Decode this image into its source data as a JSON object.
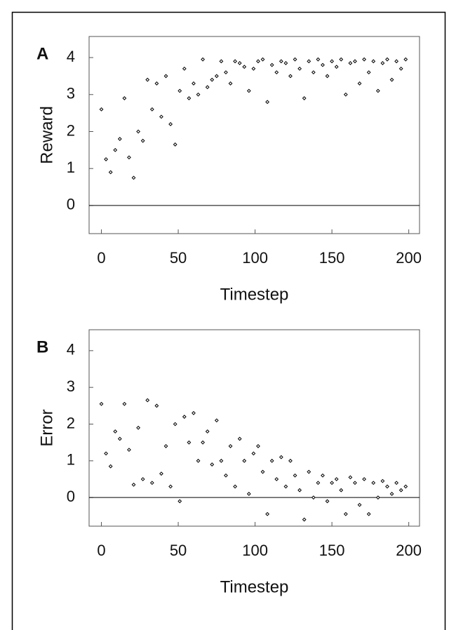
{
  "chart_data": [
    {
      "type": "scatter",
      "panel_label": "A",
      "xlabel": "Timestep",
      "ylabel": "Reward",
      "color": "#000000",
      "zero_line": true,
      "x": [
        0,
        3,
        6,
        9,
        12,
        15,
        18,
        21,
        24,
        27,
        30,
        33,
        36,
        39,
        42,
        45,
        48,
        51,
        54,
        57,
        60,
        63,
        66,
        69,
        72,
        75,
        78,
        81,
        84,
        87,
        90,
        93,
        96,
        99,
        102,
        105,
        108,
        111,
        114,
        117,
        120,
        123,
        126,
        129,
        132,
        135,
        138,
        141,
        144,
        147,
        150,
        153,
        156,
        159,
        162,
        165,
        168,
        171,
        174,
        177,
        180,
        183,
        186,
        189,
        192,
        195,
        198
      ],
      "values": [
        2.6,
        1.25,
        0.9,
        1.5,
        1.8,
        2.9,
        1.3,
        0.75,
        2.0,
        1.75,
        3.4,
        2.6,
        3.3,
        2.4,
        3.5,
        2.2,
        1.65,
        3.1,
        3.7,
        2.9,
        3.3,
        3.0,
        3.95,
        3.2,
        3.4,
        3.5,
        3.9,
        3.6,
        3.3,
        3.9,
        3.85,
        3.75,
        3.1,
        3.7,
        3.9,
        3.95,
        2.8,
        3.8,
        3.6,
        3.9,
        3.85,
        3.5,
        3.95,
        3.7,
        2.9,
        3.9,
        3.6,
        3.95,
        3.8,
        3.5,
        3.9,
        3.75,
        3.95,
        3.0,
        3.85,
        3.9,
        3.3,
        3.95,
        3.6,
        3.9,
        3.1,
        3.85,
        3.95,
        3.4,
        3.9,
        3.7,
        3.95
      ],
      "xlim": [
        -8,
        207
      ],
      "ylim": [
        -0.76,
        4.57
      ],
      "xticks": [
        0,
        50,
        100,
        150,
        200
      ],
      "yticks": [
        0,
        1,
        2,
        3,
        4
      ]
    },
    {
      "type": "scatter",
      "panel_label": "B",
      "xlabel": "Timestep",
      "ylabel": "Error",
      "color": "#000000",
      "zero_line": true,
      "x": [
        0,
        3,
        6,
        9,
        12,
        15,
        18,
        21,
        24,
        27,
        30,
        33,
        36,
        39,
        42,
        45,
        48,
        51,
        54,
        57,
        60,
        63,
        66,
        69,
        72,
        75,
        78,
        81,
        84,
        87,
        90,
        93,
        96,
        99,
        102,
        105,
        108,
        111,
        114,
        117,
        120,
        123,
        126,
        129,
        132,
        135,
        138,
        141,
        144,
        147,
        150,
        153,
        156,
        159,
        162,
        165,
        168,
        171,
        174,
        177,
        180,
        183,
        186,
        189,
        192,
        195,
        198
      ],
      "values": [
        2.55,
        1.2,
        0.85,
        1.8,
        1.6,
        2.55,
        1.3,
        0.35,
        1.9,
        0.5,
        2.65,
        0.4,
        2.5,
        0.65,
        1.4,
        0.3,
        2.0,
        -0.1,
        2.2,
        1.5,
        2.3,
        1.0,
        1.5,
        1.8,
        0.9,
        2.1,
        1.0,
        0.6,
        1.4,
        0.3,
        1.6,
        1.0,
        0.1,
        1.2,
        1.4,
        0.7,
        -0.45,
        1.0,
        0.5,
        1.1,
        0.3,
        1.0,
        0.6,
        0.2,
        -0.6,
        0.7,
        0.0,
        0.4,
        0.6,
        -0.1,
        0.4,
        0.5,
        0.2,
        -0.45,
        0.55,
        0.4,
        -0.2,
        0.5,
        -0.45,
        0.4,
        0.0,
        0.45,
        0.3,
        0.1,
        0.4,
        0.2,
        0.3
      ],
      "xlim": [
        -8,
        207
      ],
      "ylim": [
        -0.78,
        4.57
      ],
      "xticks": [
        0,
        50,
        100,
        150,
        200
      ],
      "yticks": [
        0,
        1,
        2,
        3,
        4
      ]
    }
  ]
}
